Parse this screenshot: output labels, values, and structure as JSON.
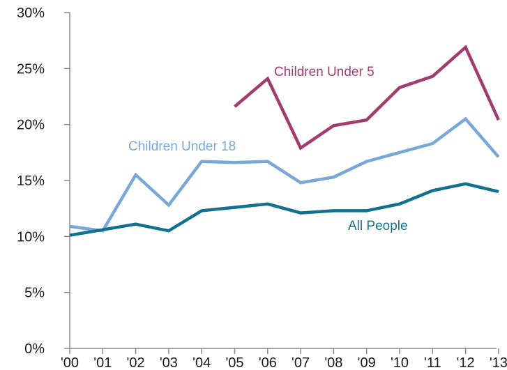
{
  "chart_data": {
    "type": "line",
    "x": [
      "'00",
      "'01",
      "'02",
      "'03",
      "'04",
      "'05",
      "'06",
      "'07",
      "'08",
      "'09",
      "'10",
      "'11",
      "'12",
      "'13"
    ],
    "ylim": [
      0,
      30
    ],
    "yticks": [
      "0%",
      "5%",
      "10%",
      "15%",
      "20%",
      "25%",
      "30%"
    ],
    "ytick_values": [
      0,
      5,
      10,
      15,
      20,
      25,
      30
    ],
    "grid": false,
    "series": [
      {
        "name": "Children Under 5",
        "color": "#a23b72",
        "values": [
          null,
          null,
          null,
          null,
          null,
          21.6,
          24.1,
          17.9,
          19.9,
          20.4,
          23.3,
          24.3,
          26.9,
          20.4
        ]
      },
      {
        "name": "Children Under 18",
        "color": "#7aa7d9",
        "values": [
          10.9,
          10.5,
          15.5,
          12.8,
          16.7,
          16.6,
          16.7,
          14.8,
          15.3,
          16.7,
          17.5,
          18.3,
          20.5,
          17.1
        ]
      },
      {
        "name": "All People",
        "color": "#14708f",
        "values": [
          10.1,
          10.6,
          11.1,
          10.5,
          12.3,
          12.6,
          12.9,
          12.1,
          12.3,
          12.3,
          12.9,
          14.1,
          14.7,
          14.0
        ]
      }
    ]
  }
}
